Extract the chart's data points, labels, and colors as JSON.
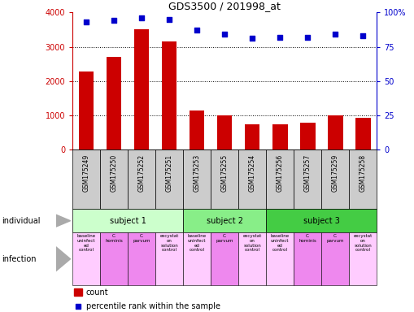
{
  "title": "GDS3500 / 201998_at",
  "gsm_labels": [
    "GSM175249",
    "GSM175250",
    "GSM175252",
    "GSM175251",
    "GSM175253",
    "GSM175255",
    "GSM175254",
    "GSM175256",
    "GSM175257",
    "GSM175259",
    "GSM175258"
  ],
  "bar_values": [
    2280,
    2700,
    3500,
    3150,
    1150,
    1000,
    750,
    750,
    780,
    1000,
    930
  ],
  "percentile_values": [
    93,
    94,
    96,
    95,
    87,
    84,
    81,
    82,
    82,
    84,
    83
  ],
  "bar_color": "#cc0000",
  "dot_color": "#0000cc",
  "ylim_left": [
    0,
    4000
  ],
  "ylim_right": [
    0,
    100
  ],
  "yticks_left": [
    0,
    1000,
    2000,
    3000,
    4000
  ],
  "yticks_right": [
    0,
    25,
    50,
    75,
    100
  ],
  "ytick_labels_right": [
    "0",
    "25",
    "50",
    "75",
    "100%"
  ],
  "subjects": [
    {
      "label": "subject 1",
      "start": 0,
      "end": 4,
      "color": "#ccffcc"
    },
    {
      "label": "subject 2",
      "start": 4,
      "end": 7,
      "color": "#88ee88"
    },
    {
      "label": "subject 3",
      "start": 7,
      "end": 11,
      "color": "#44cc44"
    }
  ],
  "infections": [
    {
      "label": "baseline\nuninfect\ned\ncontrol",
      "col": 0,
      "color": "#ffccff"
    },
    {
      "label": "C.\nhominis",
      "col": 1,
      "color": "#ee88ee"
    },
    {
      "label": "C.\nparvum",
      "col": 2,
      "color": "#ee88ee"
    },
    {
      "label": "excystat\non\nsolution\ncontrol",
      "col": 3,
      "color": "#ffccff"
    },
    {
      "label": "baseline\nuninfect\ned\ncontrol",
      "col": 4,
      "color": "#ffccff"
    },
    {
      "label": "C.\nparvum",
      "col": 5,
      "color": "#ee88ee"
    },
    {
      "label": "excystat\non\nsolution\ncontrol",
      "col": 6,
      "color": "#ffccff"
    },
    {
      "label": "baseline\nuninfect\ned\ncontrol",
      "col": 7,
      "color": "#ffccff"
    },
    {
      "label": "C.\nhominis",
      "col": 8,
      "color": "#ee88ee"
    },
    {
      "label": "C.\nparvum",
      "col": 9,
      "color": "#ee88ee"
    },
    {
      "label": "excystat\non\nsolution\ncontrol",
      "col": 10,
      "color": "#ffccff"
    }
  ],
  "legend_count_color": "#cc0000",
  "legend_dot_color": "#0000cc",
  "individual_label": "individual",
  "infection_label": "infection",
  "bg_gsm_color": "#cccccc",
  "fig_width": 5.09,
  "fig_height": 3.84,
  "dpi": 100
}
